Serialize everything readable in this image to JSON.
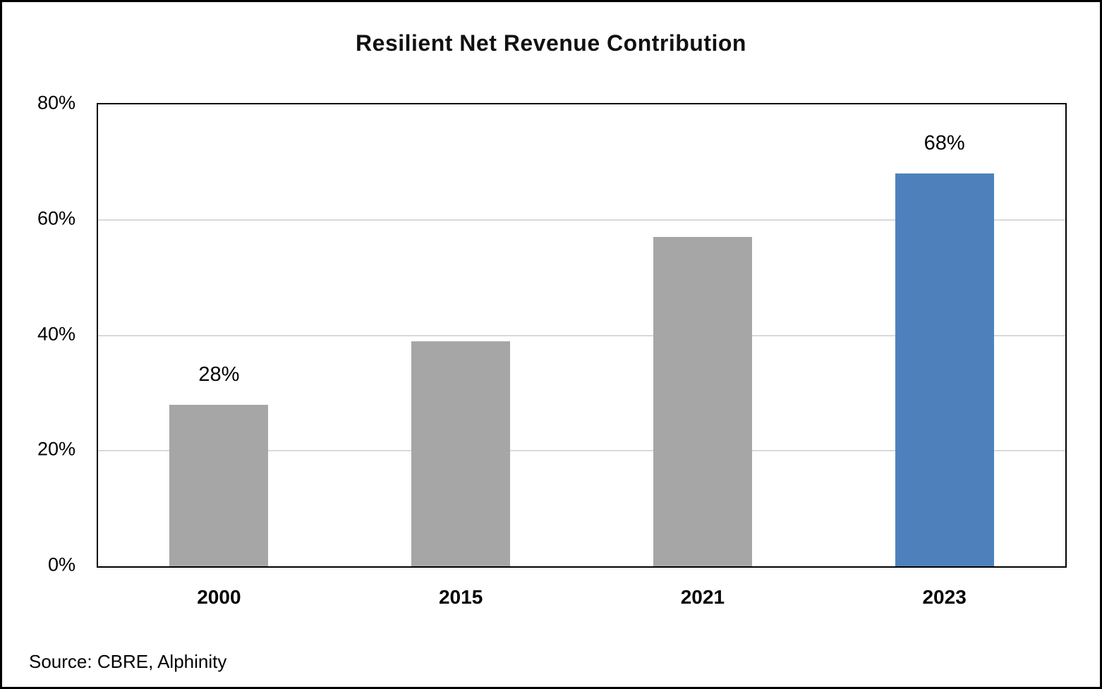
{
  "title": "Resilient Net Revenue Contribution",
  "source_note": "Source: CBRE, Alphinity",
  "colors": {
    "bar_default": "#A6A6A6",
    "bar_highlight": "#4E81BC",
    "gridline": "#D9D9D9",
    "axis_border": "#000000",
    "text": "#000000"
  },
  "chart_data": {
    "type": "bar",
    "title": "Resilient Net Revenue Contribution",
    "categories": [
      "2000",
      "2015",
      "2021",
      "2023"
    ],
    "values": [
      28,
      39,
      57,
      68
    ],
    "bar_colors": [
      "#A6A6A6",
      "#A6A6A6",
      "#A6A6A6",
      "#4E81BC"
    ],
    "data_labels": [
      "28%",
      null,
      null,
      "68%"
    ],
    "xlabel": "",
    "ylabel": "",
    "ylim": [
      0,
      80
    ],
    "yticks": [
      0,
      20,
      40,
      60,
      80
    ],
    "ytick_labels": [
      "0%",
      "20%",
      "40%",
      "60%",
      "80%"
    ],
    "grid": true,
    "legend": false
  }
}
